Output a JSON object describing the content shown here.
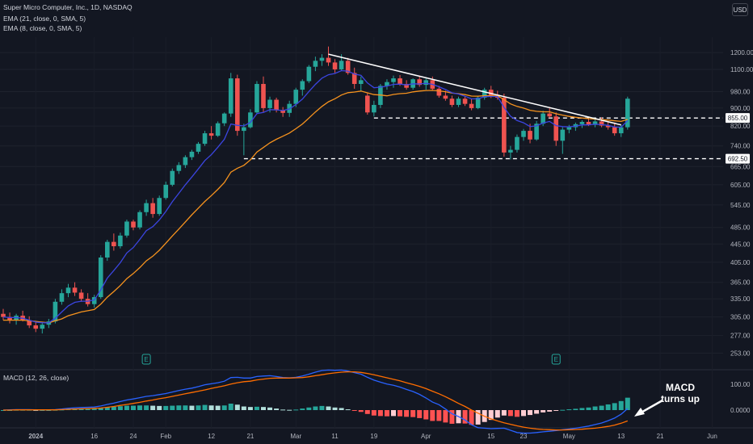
{
  "header": {
    "symbol_title": "Super Micro Computer, Inc., 1D, NASDAQ",
    "ema21_label": "EMA (21, close, 0, SMA, 5)",
    "ema8_label": "EMA (8, close, 0, SMA, 5)",
    "currency": "USD"
  },
  "macd_pane": {
    "label": "MACD (12, 26, close)",
    "annotation": [
      "MACD",
      "turns up"
    ]
  },
  "colors": {
    "background": "#131722",
    "up": "#26a69a",
    "down": "#ef5350",
    "ema8": "#3b45e0",
    "ema21": "#f7931e",
    "macd_line": "#2962ff",
    "signal_line": "#ff6d00",
    "trendline": "#ffffff"
  },
  "chart_data": [
    {
      "type": "candlestick",
      "title": "Super Micro Computer, Inc., 1D, NASDAQ",
      "y_scale": "log",
      "ylim": [
        245,
        1290
      ],
      "y_ticks": [
        "1200.00",
        "1100.00",
        "980.00",
        "900.00",
        "820.00",
        "740.00",
        "665.00",
        "605.00",
        "545.00",
        "485.00",
        "445.00",
        "405.00",
        "365.00",
        "335.00",
        "305.00",
        "277.00",
        "253.00"
      ],
      "x_ticks": [
        "2024",
        "16",
        "24",
        "Feb",
        "12",
        "21",
        "Mar",
        "11",
        "19",
        "Apr",
        "15",
        "23",
        "May",
        "13",
        "21",
        "Jun"
      ],
      "price_labels": [
        "855.00",
        "692.50"
      ],
      "levels": [
        855.0,
        692.5
      ],
      "ohlc": [
        [
          310,
          318,
          300,
          305
        ],
        [
          305,
          312,
          295,
          300
        ],
        [
          300,
          310,
          293,
          307
        ],
        [
          307,
          315,
          298,
          300
        ],
        [
          300,
          306,
          288,
          292
        ],
        [
          292,
          298,
          282,
          287
        ],
        [
          287,
          296,
          280,
          293
        ],
        [
          293,
          302,
          288,
          298
        ],
        [
          298,
          335,
          295,
          330
        ],
        [
          330,
          352,
          325,
          345
        ],
        [
          345,
          362,
          338,
          355
        ],
        [
          355,
          365,
          340,
          346
        ],
        [
          346,
          352,
          330,
          335
        ],
        [
          335,
          345,
          322,
          326
        ],
        [
          326,
          342,
          320,
          338
        ],
        [
          338,
          420,
          335,
          415
        ],
        [
          415,
          455,
          408,
          450
        ],
        [
          450,
          470,
          430,
          440
        ],
        [
          440,
          472,
          435,
          465
        ],
        [
          465,
          505,
          460,
          500
        ],
        [
          500,
          505,
          478,
          485
        ],
        [
          485,
          530,
          480,
          525
        ],
        [
          525,
          560,
          515,
          550
        ],
        [
          550,
          565,
          510,
          520
        ],
        [
          520,
          572,
          515,
          565
        ],
        [
          565,
          615,
          560,
          605
        ],
        [
          605,
          658,
          600,
          650
        ],
        [
          650,
          680,
          640,
          670
        ],
        [
          670,
          705,
          660,
          698
        ],
        [
          698,
          725,
          688,
          718
        ],
        [
          718,
          755,
          710,
          748
        ],
        [
          748,
          800,
          740,
          790
        ],
        [
          790,
          820,
          765,
          780
        ],
        [
          780,
          840,
          775,
          832
        ],
        [
          832,
          880,
          820,
          875
        ],
        [
          875,
          1080,
          860,
          1050
        ],
        [
          1050,
          1070,
          780,
          800
        ],
        [
          800,
          830,
          705,
          815
        ],
        [
          815,
          895,
          810,
          880
        ],
        [
          880,
          1035,
          875,
          1020
        ],
        [
          1020,
          1060,
          880,
          900
        ],
        [
          900,
          955,
          880,
          940
        ],
        [
          940,
          950,
          880,
          890
        ],
        [
          890,
          905,
          860,
          878
        ],
        [
          878,
          935,
          860,
          920
        ],
        [
          920,
          1000,
          905,
          990
        ],
        [
          990,
          1045,
          960,
          1035
        ],
        [
          1035,
          1125,
          1025,
          1115
        ],
        [
          1115,
          1175,
          1090,
          1150
        ],
        [
          1150,
          1190,
          1120,
          1168
        ],
        [
          1168,
          1238,
          1120,
          1140
        ],
        [
          1140,
          1160,
          1080,
          1100
        ],
        [
          1100,
          1190,
          1092,
          1150
        ],
        [
          1150,
          1168,
          1070,
          1080
        ],
        [
          1080,
          1110,
          995,
          1020
        ],
        [
          1020,
          1060,
          980,
          1040
        ],
        [
          960,
          975,
          870,
          880
        ],
        [
          880,
          935,
          862,
          915
        ],
        [
          915,
          1020,
          900,
          1010
        ],
        [
          1010,
          1045,
          990,
          1030
        ],
        [
          1030,
          1065,
          1000,
          1050
        ],
        [
          1050,
          1068,
          1010,
          1020
        ],
        [
          1020,
          1040,
          990,
          1000
        ],
        [
          1000,
          1050,
          990,
          1045
        ],
        [
          1045,
          1062,
          1005,
          1015
        ],
        [
          1015,
          1050,
          990,
          1040
        ],
        [
          1040,
          1060,
          985,
          995
        ],
        [
          995,
          1010,
          950,
          960
        ],
        [
          960,
          985,
          935,
          945
        ],
        [
          945,
          960,
          905,
          915
        ],
        [
          915,
          955,
          905,
          945
        ],
        [
          945,
          960,
          910,
          920
        ],
        [
          920,
          945,
          890,
          900
        ],
        [
          900,
          960,
          895,
          950
        ],
        [
          950,
          1000,
          940,
          990
        ],
        [
          990,
          1010,
          948,
          960
        ],
        [
          960,
          985,
          940,
          950
        ],
        [
          950,
          970,
          700,
          715
        ],
        [
          715,
          740,
          690,
          725
        ],
        [
          725,
          785,
          715,
          775
        ],
        [
          775,
          808,
          760,
          800
        ],
        [
          800,
          830,
          750,
          765
        ],
        [
          765,
          842,
          760,
          830
        ],
        [
          830,
          888,
          820,
          875
        ],
        [
          875,
          905,
          855,
          862
        ],
        [
          862,
          880,
          740,
          760
        ],
        [
          760,
          815,
          710,
          805
        ],
        [
          805,
          825,
          790,
          815
        ],
        [
          815,
          835,
          800,
          828
        ],
        [
          828,
          845,
          812,
          838
        ],
        [
          838,
          850,
          820,
          825
        ],
        [
          825,
          848,
          815,
          840
        ],
        [
          840,
          858,
          815,
          822
        ],
        [
          822,
          840,
          805,
          815
        ],
        [
          815,
          835,
          780,
          790
        ],
        [
          790,
          825,
          775,
          815
        ],
        [
          815,
          955,
          805,
          945
        ]
      ],
      "ema8": [
        305,
        304,
        304,
        303,
        300,
        297,
        296,
        296,
        303,
        313,
        323,
        329,
        331,
        331,
        333,
        351,
        373,
        388,
        404,
        425,
        437,
        456,
        477,
        487,
        504,
        527,
        554,
        579,
        605,
        630,
        657,
        686,
        707,
        735,
        766,
        829,
        823,
        821,
        836,
        875,
        880,
        893,
        892,
        889,
        896,
        917,
        943,
        981,
        1018,
        1051,
        1070,
        1077,
        1093,
        1090,
        1074,
        1066,
        1025,
        1000,
        1003,
        1009,
        1018,
        1019,
        1015,
        1021,
        1020,
        1024,
        1018,
        1005,
        991,
        974,
        968,
        957,
        944,
        945,
        955,
        956,
        956,
        903,
        863,
        844,
        834,
        818,
        821,
        833,
        840,
        822,
        818,
        817,
        820,
        825,
        825,
        828,
        826,
        823,
        816,
        815,
        844
      ],
      "ema21": [
        300,
        300,
        300,
        300,
        299,
        298,
        297,
        296,
        299,
        302,
        307,
        310,
        313,
        315,
        317,
        326,
        338,
        348,
        359,
        372,
        382,
        394,
        408,
        418,
        431,
        447,
        464,
        481,
        499,
        518,
        536,
        555,
        572,
        591,
        612,
        646,
        659,
        669,
        688,
        717,
        734,
        752,
        766,
        778,
        791,
        809,
        829,
        855,
        882,
        908,
        930,
        945,
        963,
        975,
        978,
        983,
        974,
        965,
        963,
        959,
        966,
        970,
        972,
        979,
        983,
        986,
        987,
        984,
        980,
        973,
        970,
        965,
        958,
        957,
        960,
        960,
        960,
        940,
        920,
        908,
        900,
        890,
        885,
        883,
        883,
        874,
        868,
        862,
        858,
        855,
        852,
        850,
        848,
        846,
        843,
        840,
        849
      ],
      "trendline": {
        "from": {
          "bar": 50,
          "price": 1190
        },
        "to": {
          "bar": 95,
          "price": 825
        }
      },
      "earnings_markers": [
        "E",
        "E"
      ]
    },
    {
      "type": "bar+line",
      "title": "MACD (12, 26, close)",
      "y_ticks": [
        "100.00",
        "0.0000"
      ],
      "macd": [
        0,
        1,
        2,
        2,
        2,
        1,
        1,
        1,
        2,
        4,
        7,
        9,
        10,
        11,
        12,
        16,
        22,
        27,
        33,
        39,
        43,
        48,
        53,
        56,
        60,
        64,
        70,
        76,
        81,
        85,
        91,
        98,
        102,
        106,
        112,
        126,
        127,
        124,
        124,
        130,
        132,
        133,
        130,
        126,
        125,
        127,
        132,
        139,
        147,
        153,
        155,
        154,
        155,
        151,
        145,
        139,
        127,
        116,
        108,
        101,
        96,
        89,
        80,
        72,
        61,
        47,
        31,
        21,
        4,
        -14,
        -25,
        -38,
        -57,
        -68,
        -70,
        -72,
        -71,
        -70,
        -78,
        -87,
        -89,
        -89,
        -87,
        -84,
        -82,
        -79,
        -76,
        -73,
        -70,
        -66,
        -62,
        -56,
        -50,
        -41,
        -31,
        -16,
        6
      ],
      "signal": [
        0,
        0,
        1,
        1,
        1,
        1,
        1,
        1,
        1,
        2,
        3,
        4,
        5,
        6,
        7,
        8,
        11,
        14,
        18,
        22,
        26,
        30,
        35,
        39,
        44,
        48,
        53,
        58,
        63,
        68,
        73,
        78,
        84,
        89,
        94,
        101,
        106,
        110,
        112,
        117,
        120,
        123,
        124,
        124,
        124,
        125,
        126,
        129,
        133,
        137,
        141,
        144,
        147,
        148,
        148,
        146,
        142,
        137,
        131,
        125,
        119,
        113,
        106,
        99,
        92,
        83,
        73,
        63,
        52,
        39,
        26,
        14,
        0,
        -12,
        -24,
        -34,
        -42,
        -49,
        -55,
        -61,
        -66,
        -70,
        -73,
        -75,
        -76,
        -77,
        -77,
        -76,
        -75,
        -74,
        -72,
        -70,
        -67,
        -63,
        -58,
        -51,
        -42
      ],
      "histogram": [
        0,
        0,
        1,
        1,
        1,
        0,
        0,
        0,
        1,
        2,
        4,
        5,
        5,
        5,
        5,
        8,
        11,
        13,
        15,
        17,
        17,
        18,
        18,
        17,
        16,
        16,
        17,
        18,
        18,
        17,
        18,
        20,
        18,
        17,
        18,
        25,
        21,
        14,
        12,
        13,
        12,
        10,
        6,
        2,
        1,
        2,
        6,
        10,
        14,
        16,
        14,
        10,
        8,
        3,
        -3,
        -7,
        -15,
        -21,
        -23,
        -24,
        -23,
        -24,
        -26,
        -27,
        -31,
        -36,
        -42,
        -42,
        -48,
        -53,
        -51,
        -52,
        -57,
        -56,
        -46,
        -38,
        -29,
        -21,
        -23,
        -26,
        -23,
        -19,
        -14,
        -9,
        -6,
        -2,
        1,
        3,
        5,
        8,
        10,
        14,
        17,
        22,
        27,
        35,
        48
      ]
    }
  ]
}
